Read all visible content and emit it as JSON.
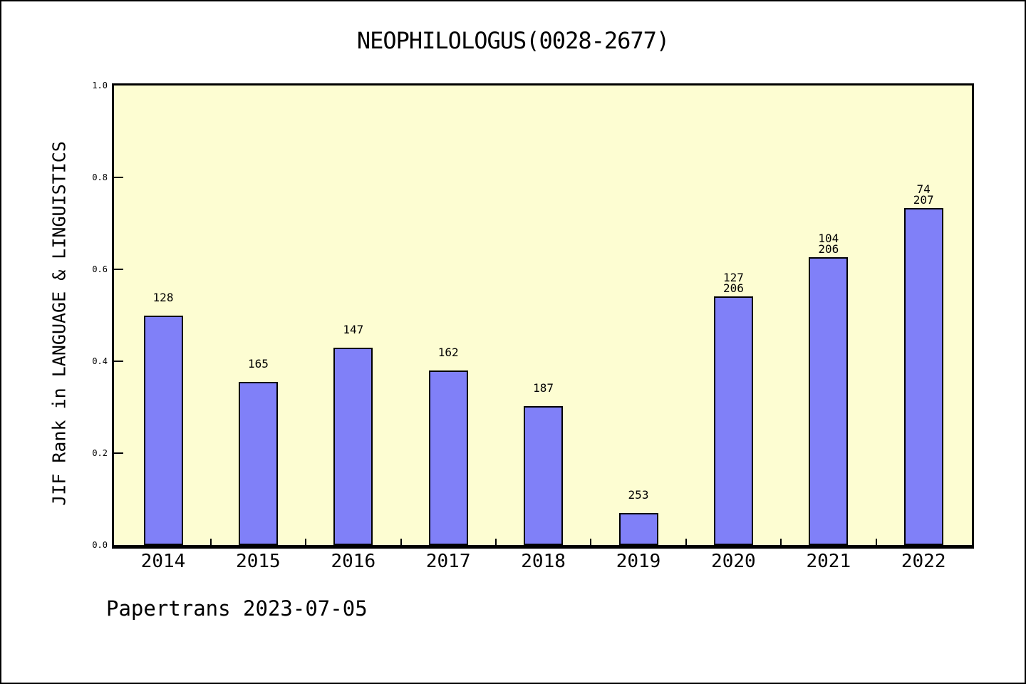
{
  "footer": {
    "text": "Papertrans 2023-07-05"
  },
  "chart_data": {
    "type": "bar",
    "title": "NEOPHILOLOGUS(0028-2677)",
    "ylabel": "JIF Rank in LANGUAGE & LINGUISTICS",
    "xlabel": "",
    "categories": [
      "2014",
      "2015",
      "2016",
      "2017",
      "2018",
      "2019",
      "2020",
      "2021",
      "2022"
    ],
    "values": [
      0.499,
      0.355,
      0.429,
      0.38,
      0.302,
      0.07,
      0.541,
      0.626,
      0.733
    ],
    "bar_labels": [
      [
        "128"
      ],
      [
        "165"
      ],
      [
        "147"
      ],
      [
        "162"
      ],
      [
        "187"
      ],
      [
        "253"
      ],
      [
        "127",
        "206"
      ],
      [
        "104",
        "206"
      ],
      [
        "74",
        "207"
      ]
    ],
    "y_ticks": [
      0.0,
      0.2,
      0.4,
      0.6,
      0.8,
      1.0
    ],
    "y_tick_labels": [
      "0.0",
      "0.2",
      "0.4",
      "0.6",
      "0.8",
      "1.0"
    ],
    "ylim": [
      0,
      1
    ],
    "grid": false,
    "legend": false,
    "colors": {
      "bar_fill": "#8080f8",
      "bar_border": "#000000",
      "plot_background": "#fdfdd2",
      "page_background": "#ffffff",
      "text": "#000000"
    }
  }
}
